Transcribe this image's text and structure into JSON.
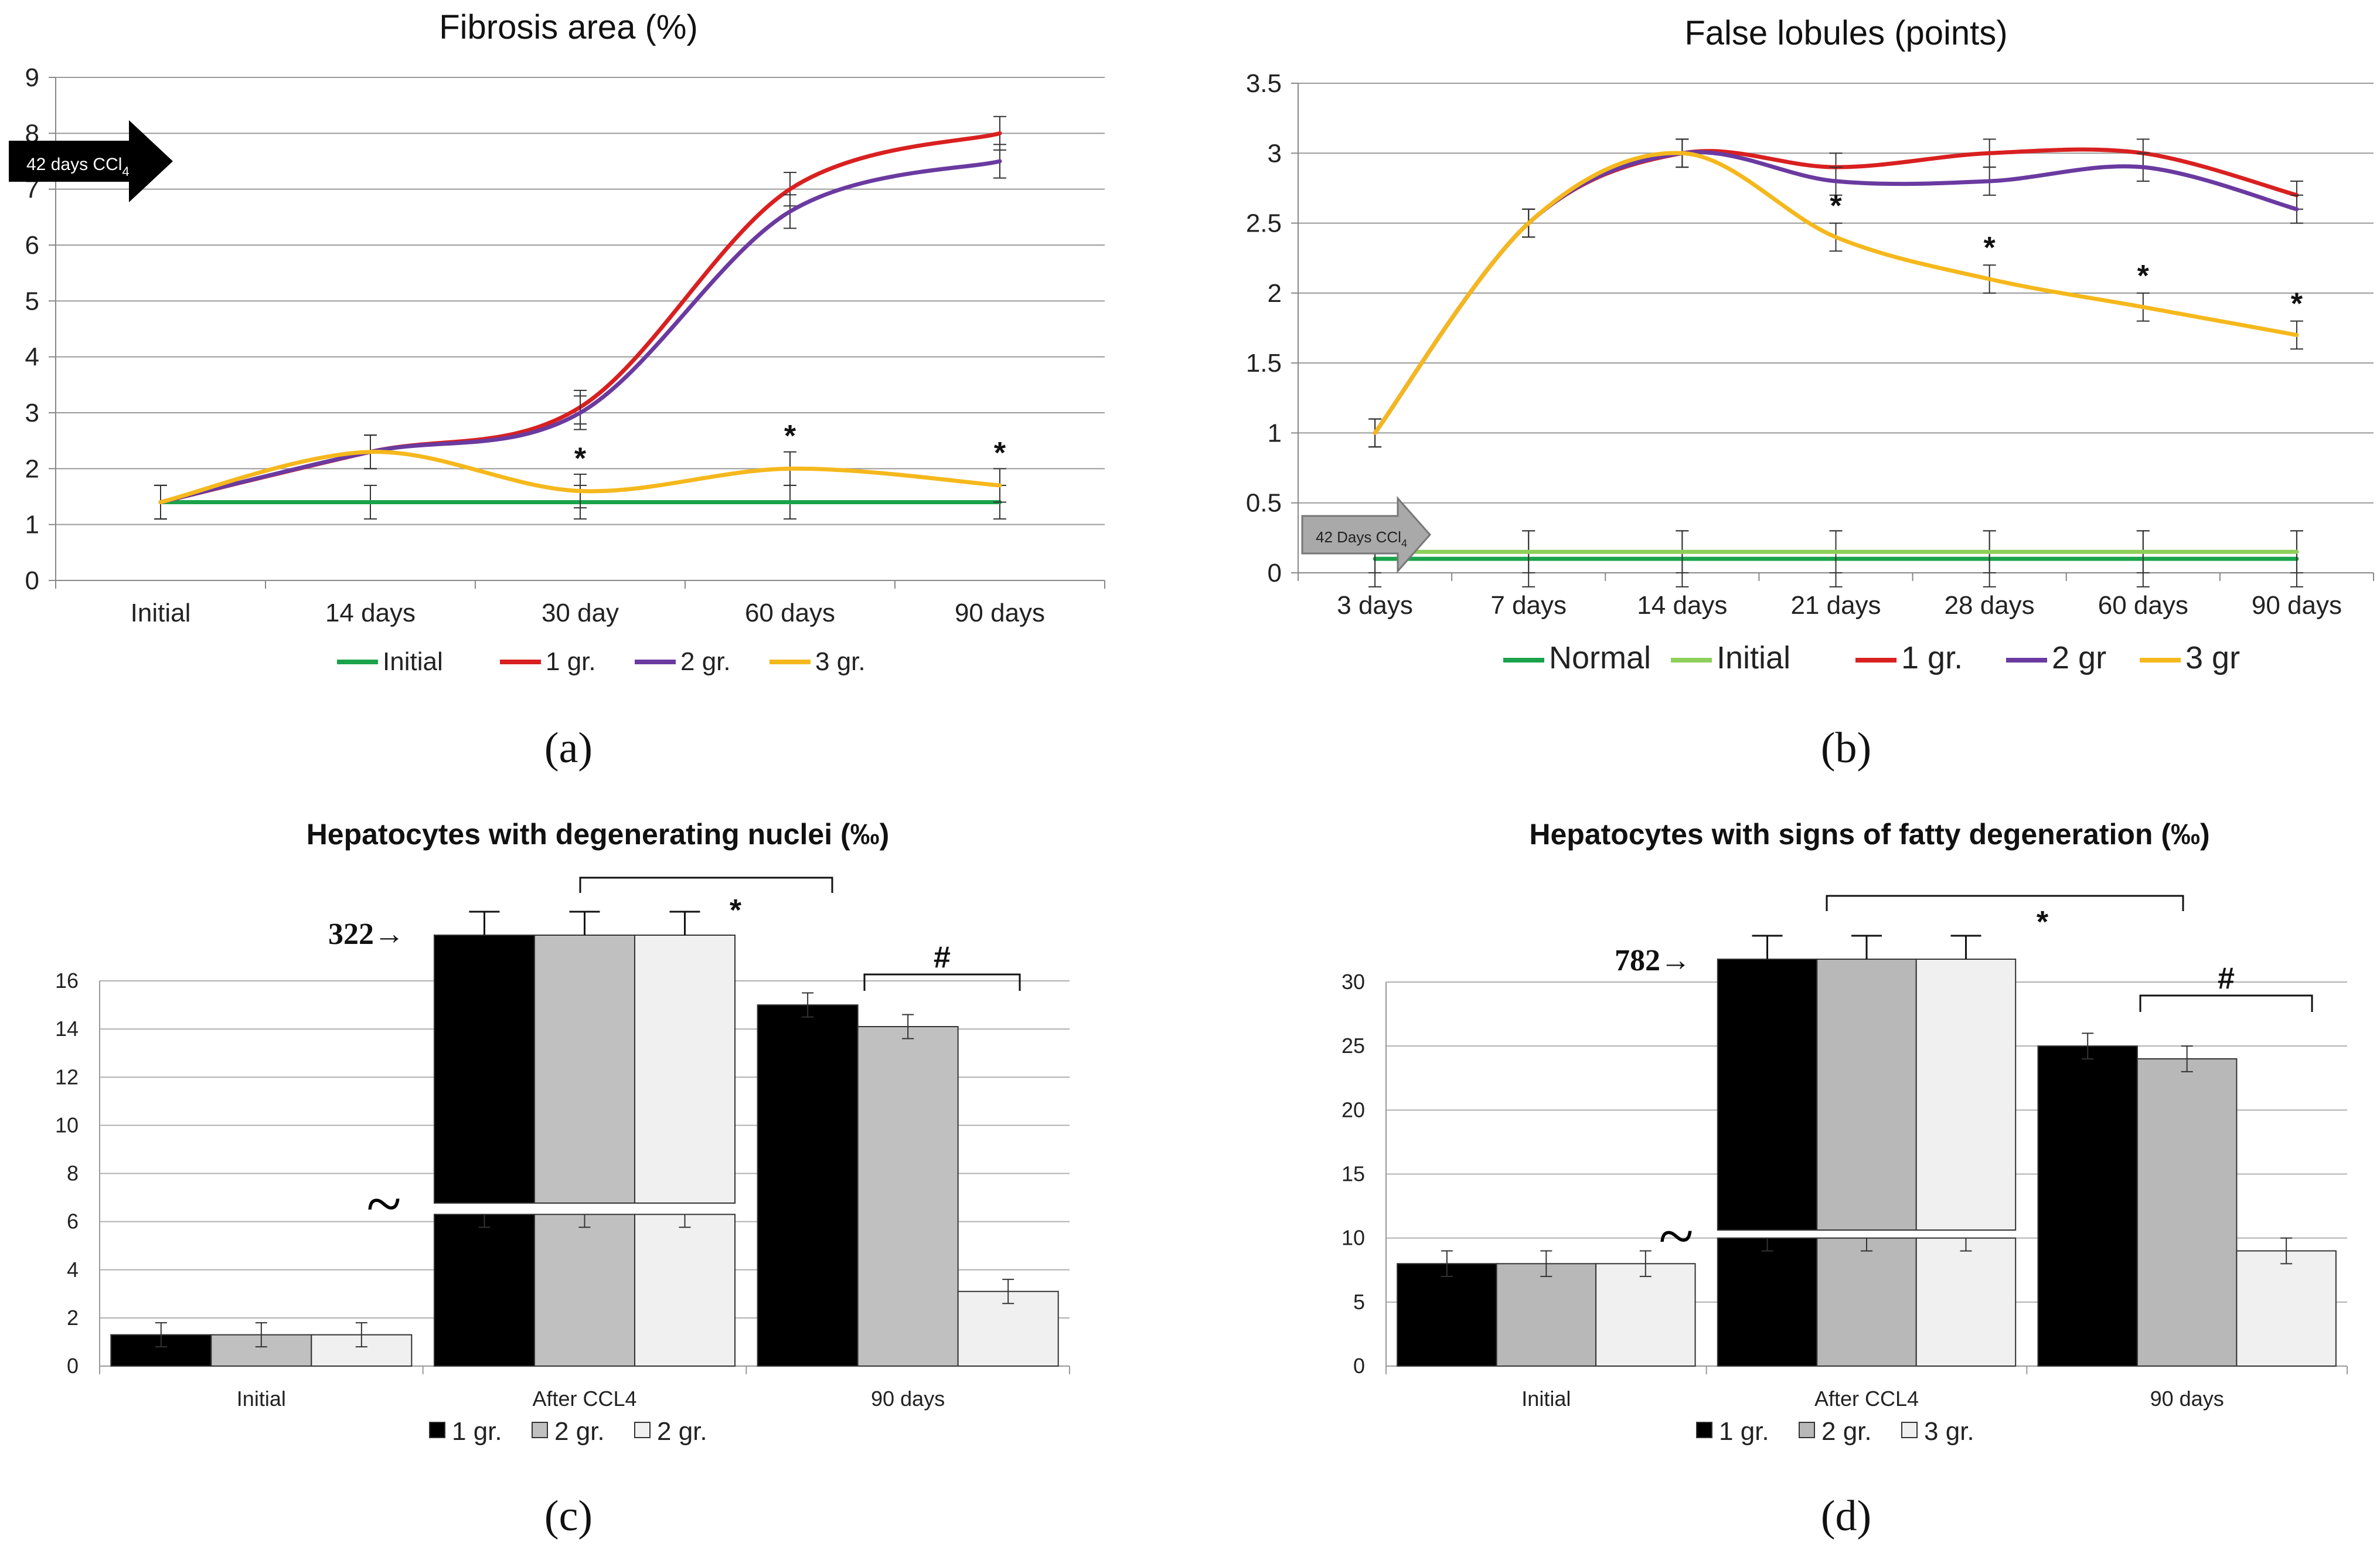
{
  "chart_data": [
    {
      "id": "a",
      "type": "line",
      "title": "Fibrosis area (%)",
      "panel_label": "(a)",
      "categories": [
        "Initial",
        "14 days",
        "30 day",
        "60 days",
        "90 days"
      ],
      "ylim": [
        0,
        9
      ],
      "yticks": [
        "0",
        "1",
        "2",
        "3",
        "4",
        "5",
        "6",
        "7",
        "8",
        "9"
      ],
      "grid": true,
      "legend_position": "bottom",
      "arrow_note": {
        "text": "42 days CCl",
        "subscript": "4"
      },
      "series": [
        {
          "name": "Initial",
          "color": "#1aa34a",
          "values": [
            1.4,
            1.4,
            1.4,
            1.4,
            1.4
          ],
          "errors": [
            0.3,
            0.3,
            0.3,
            0.3,
            0.3
          ]
        },
        {
          "name": "1 gr.",
          "color": "#d92020",
          "values": [
            1.4,
            2.3,
            3.1,
            7.0,
            8.0
          ],
          "errors": [
            0.3,
            0.3,
            0.3,
            0.3,
            0.3
          ]
        },
        {
          "name": "2 gr.",
          "color": "#6a3aa0",
          "values": [
            1.4,
            2.3,
            3.0,
            6.6,
            7.5
          ],
          "errors": [
            0.3,
            0.3,
            0.3,
            0.3,
            0.3
          ]
        },
        {
          "name": "3 gr.",
          "color": "#f5b81c",
          "values": [
            1.4,
            2.3,
            1.6,
            2.0,
            1.7
          ],
          "errors": [
            0.3,
            0.3,
            0.3,
            0.3,
            0.3
          ]
        }
      ],
      "stars": [
        {
          "category_index": 2,
          "y": 2.0,
          "text": "*"
        },
        {
          "category_index": 3,
          "y": 2.4,
          "text": "*"
        },
        {
          "category_index": 4,
          "y": 2.1,
          "text": "*"
        }
      ]
    },
    {
      "id": "b",
      "type": "line",
      "title": "False lobules (points)",
      "panel_label": "(b)",
      "categories": [
        "3 days",
        "7 days",
        "14 days",
        "21 days",
        "28 days",
        "60 days",
        "90 days"
      ],
      "ylim": [
        0,
        3.5
      ],
      "yticks": [
        "0",
        "0.5",
        "1",
        "1.5",
        "2",
        "2.5",
        "3",
        "3.5"
      ],
      "grid": true,
      "legend_position": "bottom",
      "arrow_note": {
        "text": "42 Days CCl",
        "subscript": "4"
      },
      "series": [
        {
          "name": "Normal",
          "color": "#1aa34a",
          "values": [
            0.1,
            0.1,
            0.1,
            0.1,
            0.1,
            0.1,
            0.1
          ],
          "errors": [
            0.2,
            0.2,
            0.2,
            0.2,
            0.2,
            0.2,
            0.2
          ]
        },
        {
          "name": "Initial",
          "color": "#8ccf5a",
          "values": [
            0.15,
            0.15,
            0.15,
            0.15,
            0.15,
            0.15,
            0.15
          ],
          "errors": [
            0.15,
            0.15,
            0.15,
            0.15,
            0.15,
            0.15,
            0.15
          ]
        },
        {
          "name": "1 gr.",
          "color": "#d92020",
          "values": [
            1.0,
            2.5,
            3.0,
            2.9,
            3.0,
            3.0,
            2.7
          ],
          "errors": [
            0.1,
            0.1,
            0.1,
            0.1,
            0.1,
            0.1,
            0.1
          ]
        },
        {
          "name": "2 gr",
          "color": "#6a3aa0",
          "values": [
            1.0,
            2.5,
            3.0,
            2.8,
            2.8,
            2.9,
            2.6
          ],
          "errors": [
            0.1,
            0.1,
            0.1,
            0.1,
            0.1,
            0.1,
            0.1
          ]
        },
        {
          "name": "3 gr",
          "color": "#f5b81c",
          "values": [
            1.0,
            2.5,
            3.0,
            2.4,
            2.1,
            1.9,
            1.7
          ],
          "errors": [
            0.1,
            0.1,
            0.1,
            0.1,
            0.1,
            0.1,
            0.1
          ]
        }
      ],
      "stars": [
        {
          "category_index": 3,
          "y": 2.55,
          "text": "*"
        },
        {
          "category_index": 4,
          "y": 2.25,
          "text": "*"
        },
        {
          "category_index": 5,
          "y": 2.05,
          "text": "*"
        },
        {
          "category_index": 6,
          "y": 1.85,
          "text": "*"
        }
      ]
    },
    {
      "id": "c",
      "type": "bar",
      "title": "Hepatocytes with degenerating nuclei (‰)",
      "panel_label": "(c)",
      "categories": [
        "Initial",
        "After CCL4",
        "90 days"
      ],
      "ylim": [
        0,
        16
      ],
      "yticks": [
        "0",
        "2",
        "4",
        "6",
        "8",
        "10",
        "12",
        "14",
        "16"
      ],
      "grid": true,
      "legend_position": "bottom",
      "axis_break": {
        "symbol": "~",
        "lower_max": 6.3,
        "broken_value_label": "322→"
      },
      "series": [
        {
          "name": "1 gr.",
          "color": "#000000",
          "values": [
            1.3,
            322,
            15.0
          ],
          "errors": [
            0.5,
            null,
            0.5
          ]
        },
        {
          "name": "2 gr.",
          "color": "#c0c0c0",
          "values": [
            1.3,
            322,
            14.1
          ],
          "errors": [
            0.5,
            null,
            0.5
          ]
        },
        {
          "name": "2 gr.",
          "color": "#f0f0f0",
          "values": [
            1.3,
            322,
            3.1
          ],
          "errors": [
            0.5,
            null,
            0.5
          ]
        }
      ],
      "brackets": [
        {
          "label": "*"
        },
        {
          "label": "#"
        }
      ]
    },
    {
      "id": "d",
      "type": "bar",
      "title": "Hepatocytes with signs of fatty degeneration (‰)",
      "panel_label": "(d)",
      "categories": [
        "Initial",
        "After CCL4",
        "90 days"
      ],
      "ylim": [
        0,
        30
      ],
      "yticks": [
        "0",
        "5",
        "10",
        "15",
        "20",
        "25",
        "30"
      ],
      "grid": true,
      "legend_position": "bottom",
      "axis_break": {
        "symbol": "~",
        "lower_max": 10,
        "broken_value_label": "782→"
      },
      "series": [
        {
          "name": "1 gr.",
          "color": "#000000",
          "values": [
            8,
            782,
            25
          ],
          "errors": [
            1.0,
            null,
            1.0
          ]
        },
        {
          "name": "2 gr.",
          "color": "#b8b8b8",
          "values": [
            8,
            782,
            24
          ],
          "errors": [
            1.0,
            null,
            1.0
          ]
        },
        {
          "name": "3 gr.",
          "color": "#f0f0f0",
          "values": [
            8,
            782,
            9
          ],
          "errors": [
            1.0,
            null,
            1.0
          ]
        }
      ],
      "brackets": [
        {
          "label": "*"
        },
        {
          "label": "#"
        }
      ]
    }
  ]
}
